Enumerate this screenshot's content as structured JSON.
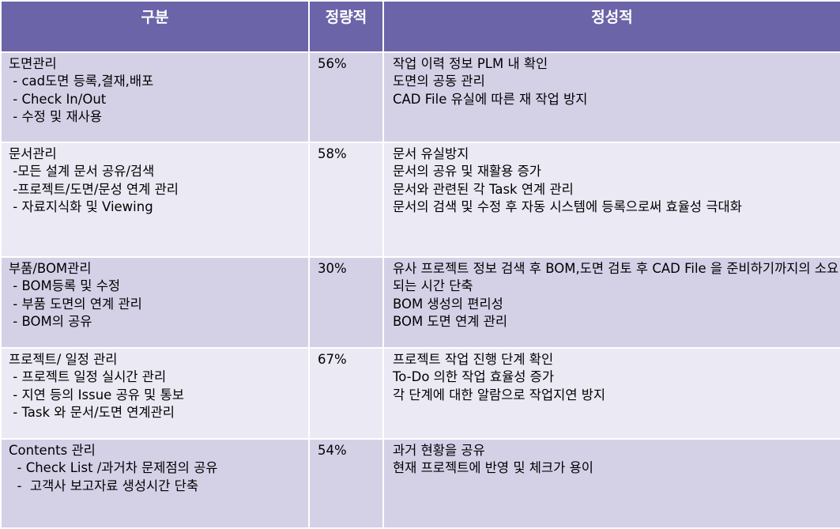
{
  "headers": {
    "category": "구분",
    "quantitative": "정량적",
    "qualitative": "정성적"
  },
  "rows": [
    {
      "title": "도면관리",
      "items": [
        " - cad도면 등록,결재,배포",
        " - Check In/Out",
        " - 수정 및 재사용"
      ],
      "percent": "56%",
      "qualitative": [
        "작업 이력 정보 PLM 내 확인",
        "도면의 공동 관리",
        "CAD File 유실에 따른 재 작업 방지"
      ]
    },
    {
      "title": "문서관리",
      "items": [
        " -모든 설계 문서 공유/검색",
        " -프로젝트/도면/문성 연계 관리",
        " - 자료지식화 및 Viewing"
      ],
      "percent": "58%",
      "qualitative": [
        "문서 유실방지",
        "문서의 공유 및 재활용 증가",
        "문서와 관련된 각 Task 연계 관리",
        "문서의 검색 및 수정 후 자동 시스템에 등록으로써 효율성 극대화"
      ]
    },
    {
      "title": "부품/BOM관리",
      "items": [
        " - BOM등록 및 수정",
        " - 부품 도면의 연계 관리",
        " - BOM의 공유"
      ],
      "percent": "30%",
      "qualitative": [
        "유사 프로젝트 정보 검색 후 BOM,도면 검토 후 CAD File 을 준비하기까지의 소요 되는 시간 단축",
        "BOM 생성의 편리성",
        "BOM 도면 연계 관리"
      ]
    },
    {
      "title": "프로젝트/ 일정 관리",
      "items": [
        " - 프로젝트 일정 실시간 관리",
        " - 지연 등의 Issue 공유 및 통보",
        " - Task 와 문서/도면 연계관리"
      ],
      "percent": "67%",
      "qualitative": [
        "프로젝트 작업 진행 단계 확인",
        "To-Do 의한 작업 효율성 증가",
        "각 단계에 대한 알람으로 작업지연 방지"
      ]
    },
    {
      "title": "Contents 관리",
      "items": [
        "  - Check List /과거차 문제점의 공유",
        "  -  고객사 보고자료 생성시간 단축"
      ],
      "percent": "54%",
      "qualitative": [
        "과거 현황을 공유",
        "현재 프로젝트에 반영 및 체크가 용이"
      ]
    }
  ]
}
